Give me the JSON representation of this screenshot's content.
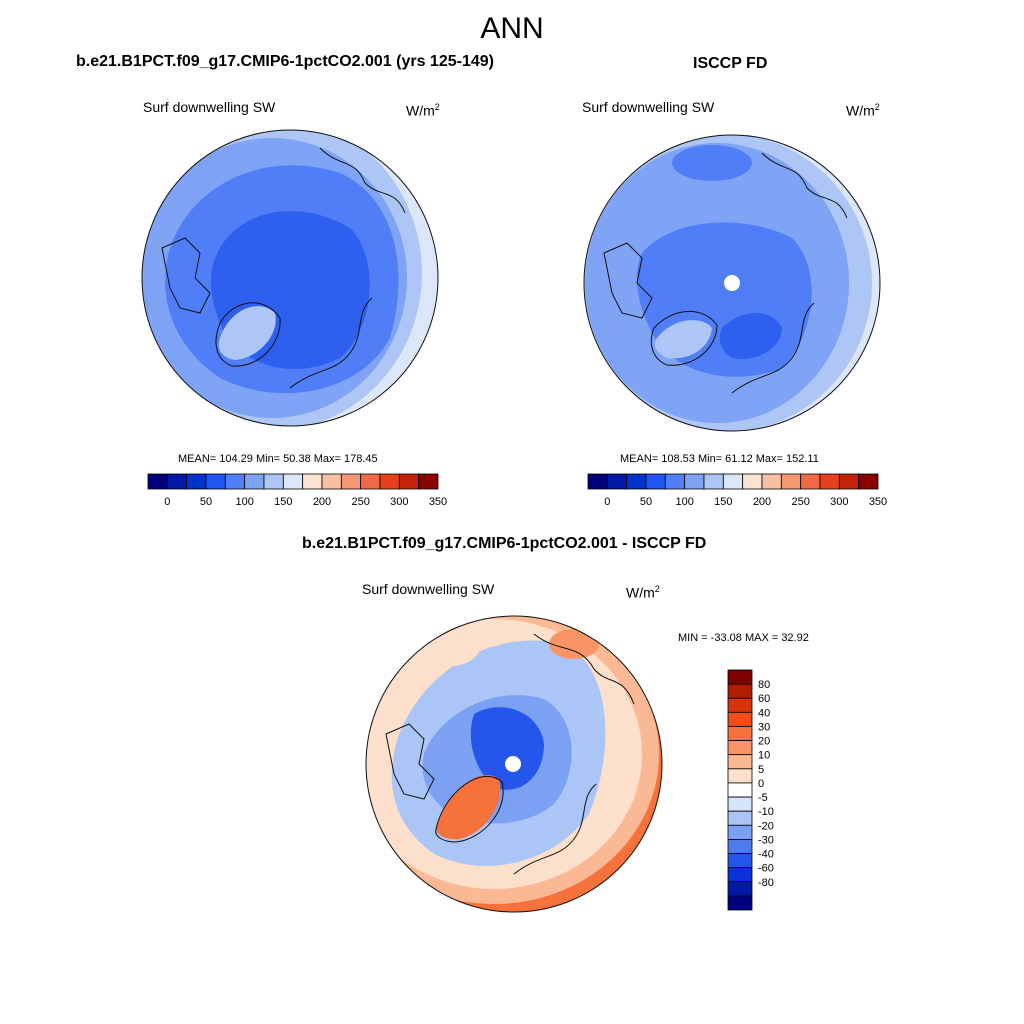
{
  "figure": {
    "title": "ANN"
  },
  "panels": {
    "model": {
      "title": "b.e21.B1PCT.f09_g17.CMIP6-1pctCO2.001 (yrs 125-149)",
      "variable": "Surf downwelling SW",
      "units": "W/m",
      "units_exp": "2",
      "stats": "MEAN= 104.29  Min=  50.38  Max= 178.45"
    },
    "obs": {
      "title": "ISCCP FD",
      "variable": "Surf downwelling SW",
      "units": "W/m",
      "units_exp": "2",
      "stats": "MEAN= 108.53  Min=  61.12  Max= 152.11"
    },
    "diff": {
      "title": "b.e21.B1PCT.f09_g17.CMIP6-1pctCO2.001 - ISCCP FD",
      "variable": "Surf downwelling SW",
      "units": "W/m",
      "units_exp": "2",
      "stats": "MIN = -33.08 MAX =  32.92"
    }
  },
  "chart_data": [
    {
      "type": "heatmap",
      "projection": "north-polar-stereographic",
      "title": "b.e21.B1PCT.f09_g17.CMIP6-1pctCO2.001 (yrs 125-149)",
      "variable": "Surf downwelling SW",
      "units": "W/m2",
      "mean": 104.29,
      "min": 50.38,
      "max": 178.45,
      "colorbar": {
        "orientation": "horizontal",
        "tick_labels": [
          "0",
          "50",
          "100",
          "150",
          "200",
          "250",
          "300",
          "350"
        ],
        "colors": [
          "#00007f",
          "#0019a8",
          "#0033cc",
          "#1f55f2",
          "#4f7ef7",
          "#7fa3f5",
          "#adc6f5",
          "#dbe6f9",
          "#fde3d2",
          "#f8c0a2",
          "#f49874",
          "#f16a46",
          "#e8401c",
          "#c32309",
          "#8b0000"
        ]
      }
    },
    {
      "type": "heatmap",
      "projection": "north-polar-stereographic",
      "title": "ISCCP FD",
      "variable": "Surf downwelling SW",
      "units": "W/m2",
      "mean": 108.53,
      "min": 61.12,
      "max": 152.11,
      "colorbar": {
        "orientation": "horizontal",
        "tick_labels": [
          "0",
          "50",
          "100",
          "150",
          "200",
          "250",
          "300",
          "350"
        ],
        "colors": [
          "#00007f",
          "#0019a8",
          "#0033cc",
          "#1f55f2",
          "#4f7ef7",
          "#7fa3f5",
          "#adc6f5",
          "#dbe6f9",
          "#fde3d2",
          "#f8c0a2",
          "#f49874",
          "#f16a46",
          "#e8401c",
          "#c32309",
          "#8b0000"
        ]
      }
    },
    {
      "type": "heatmap",
      "projection": "north-polar-stereographic",
      "title": "b.e21.B1PCT.f09_g17.CMIP6-1pctCO2.001 - ISCCP FD",
      "variable": "Surf downwelling SW",
      "units": "W/m2",
      "min": -33.08,
      "max": 32.92,
      "colorbar": {
        "orientation": "vertical",
        "tick_labels": [
          "80",
          "60",
          "40",
          "30",
          "20",
          "10",
          "5",
          "0",
          "-5",
          "-10",
          "-20",
          "-30",
          "-40",
          "-60",
          "-80"
        ],
        "colors": [
          "#800000",
          "#b01e00",
          "#d8330c",
          "#f24d16",
          "#f7723b",
          "#f99466",
          "#fbb894",
          "#fde0cb",
          "#ffffff",
          "#d6e4fa",
          "#aac5f6",
          "#7ba2f2",
          "#4d7cf0",
          "#2556ec",
          "#0a32d6",
          "#001aa8",
          "#000080"
        ]
      }
    }
  ]
}
